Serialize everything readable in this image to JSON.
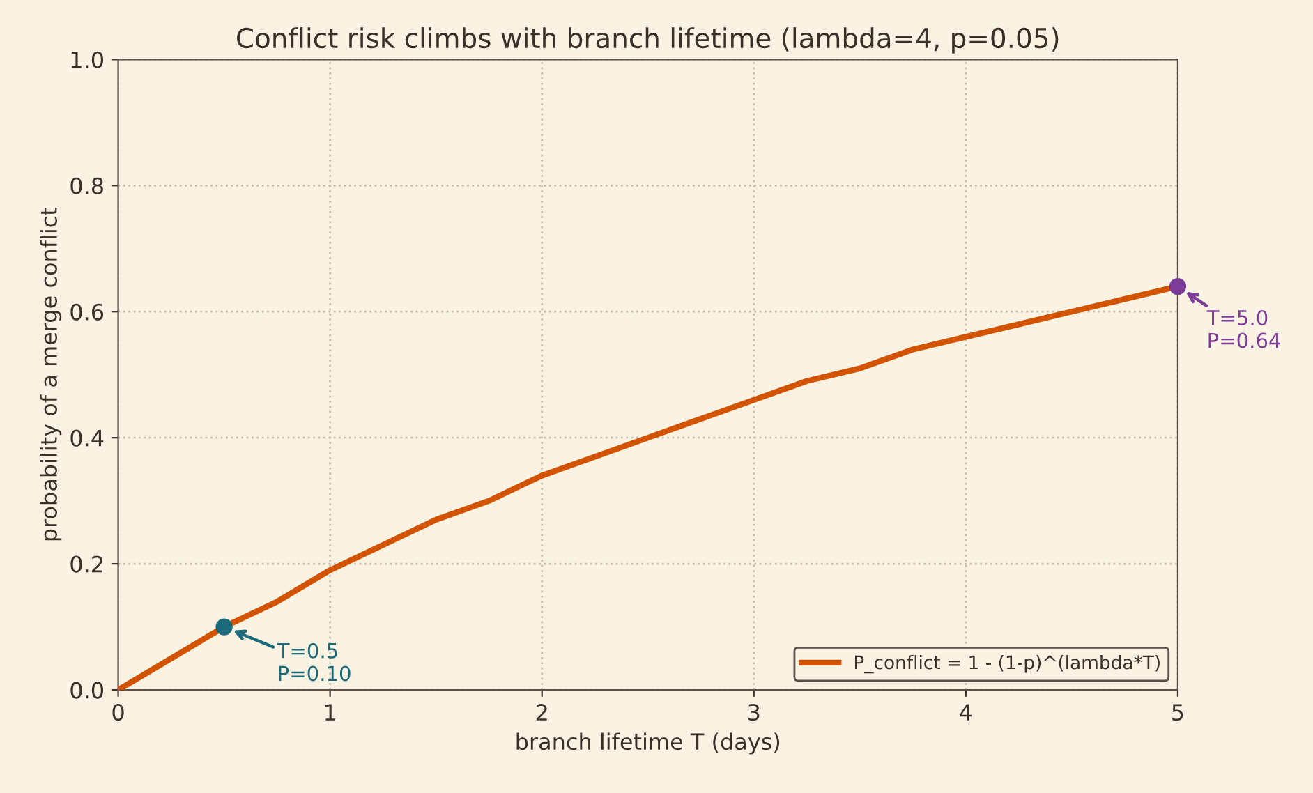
{
  "chart_data": {
    "type": "line",
    "title": "Conflict risk climbs with branch lifetime (lambda=4, p=0.05)",
    "xlabel": "branch lifetime T (days)",
    "ylabel": "probability of a merge conflict",
    "x": [
      0,
      0.25,
      0.5,
      0.75,
      1,
      1.25,
      1.5,
      1.75,
      2,
      2.25,
      2.5,
      2.75,
      3,
      3.25,
      3.5,
      3.75,
      4,
      4.25,
      4.5,
      4.75,
      5
    ],
    "series": [
      {
        "name": "P_conflict = 1 - (1-p)^(lambda*T)",
        "color": "#d35400",
        "marker": "none",
        "values": [
          0,
          0.05,
          0.1,
          0.14,
          0.19,
          0.23,
          0.27,
          0.3,
          0.34,
          0.37,
          0.4,
          0.43,
          0.46,
          0.49,
          0.51,
          0.54,
          0.56,
          0.58,
          0.6,
          0.62,
          0.64
        ]
      },
      {
        "type": "scatter",
        "marker": "circle",
        "color": "#1a6a7a",
        "x": [
          0.5
        ],
        "values": [
          0.1
        ]
      },
      {
        "type": "scatter",
        "marker": "circle",
        "color": "#7d3c98",
        "x": [
          5.0
        ],
        "values": [
          0.64
        ]
      }
    ],
    "annotations": [
      {
        "text": "T=0.5\nP=0.10",
        "x": 0.5,
        "y": 0.1
      },
      {
        "text": "T=5.0\nP=0.64",
        "x": 5.0,
        "y": 0.64
      }
    ],
    "xlim": [
      0,
      5
    ],
    "ylim": [
      0,
      1
    ],
    "xticks": [
      0,
      1,
      2,
      3,
      4,
      5
    ],
    "yticks": [
      {
        "value": 0,
        "label": "0.0"
      },
      0.2,
      0.4,
      0.6,
      0.8,
      {
        "value": 1,
        "label": "1.0"
      }
    ],
    "grid": true,
    "legend": "lower right",
    "line_style": "solid"
  }
}
